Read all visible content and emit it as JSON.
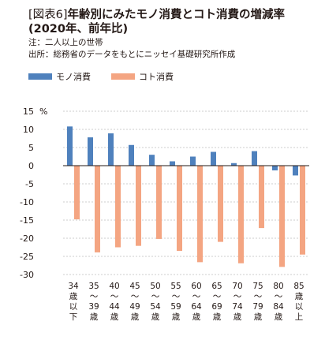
{
  "header": {
    "fig_label": "[図表6]",
    "title_line1": "年齢別にみたモノ消費とコト消費の増減率",
    "title_line2": "(2020年、前年比)",
    "note": "注：二人以上の世帯",
    "source": "出所：総務省のデータをもとにニッセイ基礎研究所作成"
  },
  "chart_data": {
    "type": "bar",
    "y_unit": "%",
    "ylim": [
      -30,
      15
    ],
    "yticks": [
      15,
      10,
      5,
      0,
      -5,
      -10,
      -15,
      -20,
      -25,
      -30
    ],
    "grid": true,
    "legend_position": "top-left",
    "categories": [
      [
        "34",
        "歳",
        "以",
        "下"
      ],
      [
        "35",
        "〜",
        "39",
        "歳"
      ],
      [
        "40",
        "〜",
        "44",
        "歳"
      ],
      [
        "45",
        "〜",
        "49",
        "歳"
      ],
      [
        "50",
        "〜",
        "54",
        "歳"
      ],
      [
        "55",
        "〜",
        "59",
        "歳"
      ],
      [
        "60",
        "〜",
        "64",
        "歳"
      ],
      [
        "65",
        "〜",
        "69",
        "歳"
      ],
      [
        "70",
        "〜",
        "74",
        "歳"
      ],
      [
        "75",
        "〜",
        "79",
        "歳"
      ],
      [
        "80",
        "〜",
        "84",
        "歳"
      ],
      [
        "85",
        "歳",
        "以",
        "上"
      ]
    ],
    "series": [
      {
        "name": "モノ消費",
        "color": "#4f81bd",
        "values": [
          10.8,
          7.8,
          8.9,
          5.7,
          3.0,
          1.2,
          2.5,
          3.8,
          0.7,
          4.0,
          -1.3,
          -2.7
        ]
      },
      {
        "name": "コト消費",
        "color": "#f4a582",
        "values": [
          -14.8,
          -23.9,
          -22.5,
          -22.1,
          -20.2,
          -23.5,
          -26.6,
          -21.0,
          -26.9,
          -17.2,
          -27.9,
          -24.5
        ]
      }
    ]
  }
}
